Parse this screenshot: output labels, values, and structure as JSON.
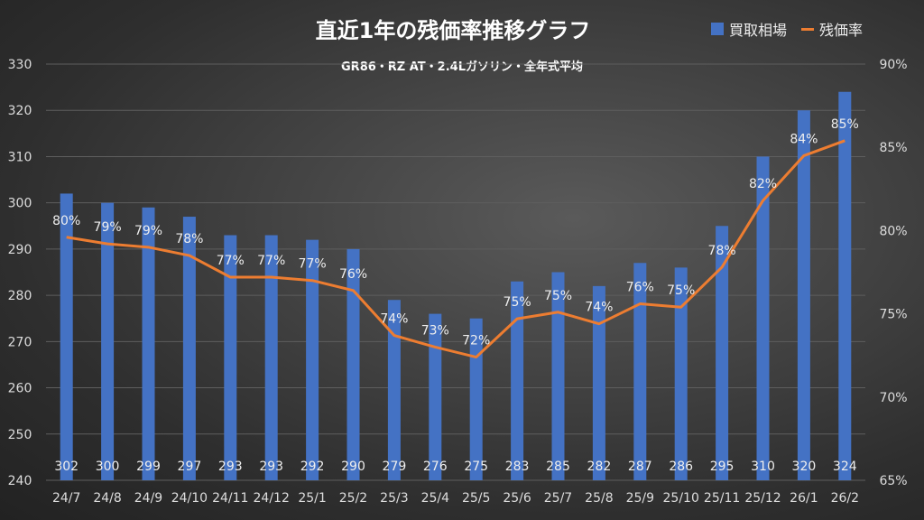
{
  "chart_data": {
    "type": "bar+line",
    "title": "直近1年の残価率推移グラフ",
    "subtitle": "GR86・RZ AT・2.4Lガソリン・全年式平均",
    "categories": [
      "24/7",
      "24/8",
      "24/9",
      "24/10",
      "24/11",
      "24/12",
      "25/1",
      "25/2",
      "25/3",
      "25/4",
      "25/5",
      "25/6",
      "25/7",
      "25/8",
      "25/9",
      "25/10",
      "25/11",
      "25/12",
      "26/1",
      "26/2"
    ],
    "series": [
      {
        "name": "買取相場",
        "type": "bar",
        "axis": "left",
        "color": "#4472c4",
        "values": [
          302,
          300,
          299,
          297,
          293,
          293,
          292,
          290,
          279,
          276,
          275,
          283,
          285,
          282,
          287,
          286,
          295,
          310,
          320,
          324
        ]
      },
      {
        "name": "残価率",
        "type": "line",
        "axis": "right",
        "color": "#ed7d31",
        "values": [
          79.6,
          79.2,
          79.0,
          78.5,
          77.2,
          77.2,
          77.0,
          76.4,
          73.7,
          73.0,
          72.4,
          74.7,
          75.1,
          74.4,
          75.6,
          75.4,
          77.8,
          81.8,
          84.5,
          85.4
        ],
        "labels": [
          "80%",
          "79%",
          "79%",
          "78%",
          "77%",
          "77%",
          "77%",
          "76%",
          "74%",
          "73%",
          "72%",
          "75%",
          "75%",
          "74%",
          "76%",
          "75%",
          "78%",
          "82%",
          "84%",
          "85%"
        ]
      }
    ],
    "y_left": {
      "lim": [
        240,
        330
      ],
      "ticks": [
        "240",
        "250",
        "260",
        "270",
        "280",
        "290",
        "300",
        "310",
        "320",
        "330"
      ]
    },
    "y_right": {
      "lim": [
        65,
        90
      ],
      "ticks": [
        "65%",
        "70%",
        "75%",
        "80%",
        "85%",
        "90%"
      ]
    },
    "grid": true,
    "legend": "top-right"
  }
}
